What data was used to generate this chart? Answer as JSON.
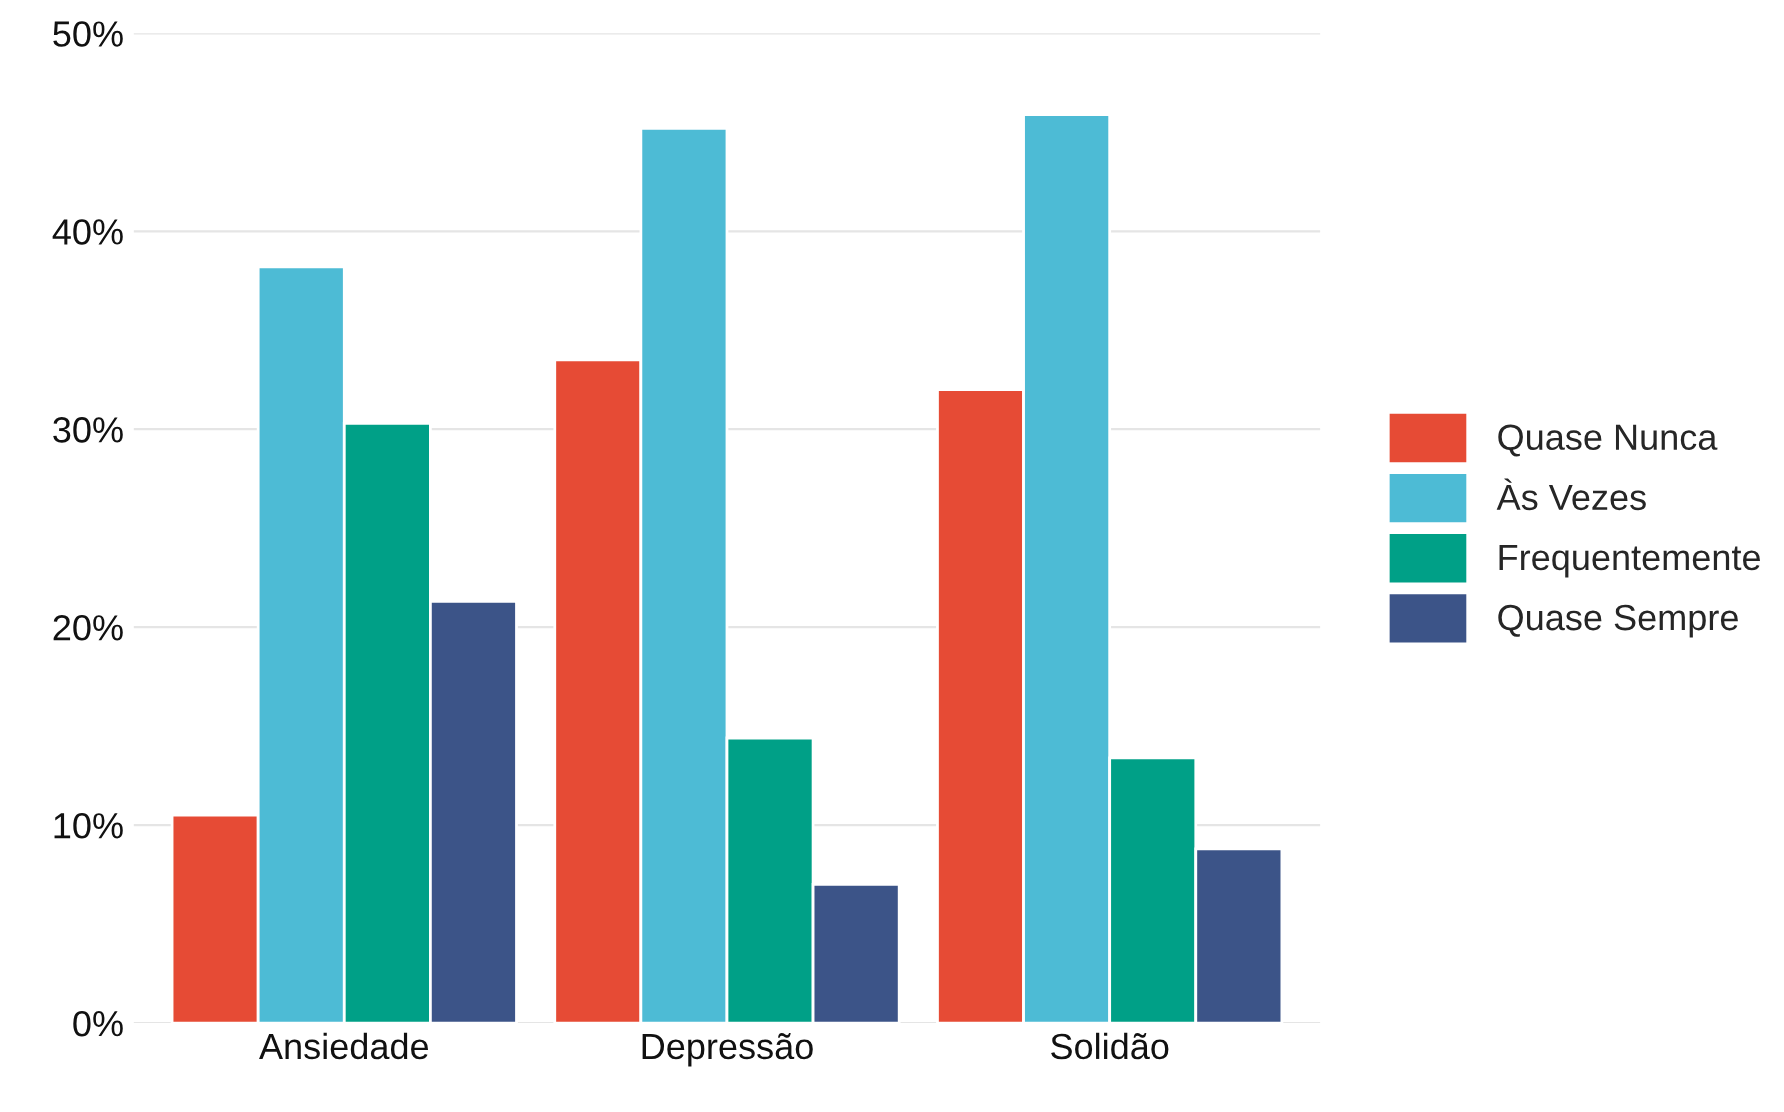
{
  "chart_data": {
    "type": "bar",
    "categories": [
      "Ansiedade",
      "Depressão",
      "Solidão"
    ],
    "series": [
      {
        "name": "Quase Nunca",
        "color": "#e64b35",
        "values": [
          10.5,
          33.5,
          32.0
        ]
      },
      {
        "name": "Às Vezes",
        "color": "#4dbbd5",
        "values": [
          38.2,
          45.2,
          45.9
        ]
      },
      {
        "name": "Frequentemente",
        "color": "#00a087",
        "values": [
          30.3,
          14.4,
          13.4
        ]
      },
      {
        "name": "Quase Sempre",
        "color": "#3c5488",
        "values": [
          21.3,
          7.0,
          8.8
        ]
      }
    ],
    "ylim": [
      0,
      50
    ],
    "yticks": [
      {
        "value": 0,
        "label": "0%"
      },
      {
        "value": 10,
        "label": "10%"
      },
      {
        "value": 20,
        "label": "20%"
      },
      {
        "value": 30,
        "label": "30%"
      },
      {
        "value": 40,
        "label": "40%"
      },
      {
        "value": 50,
        "label": "50%"
      }
    ],
    "grid": "y",
    "legend": "right"
  }
}
